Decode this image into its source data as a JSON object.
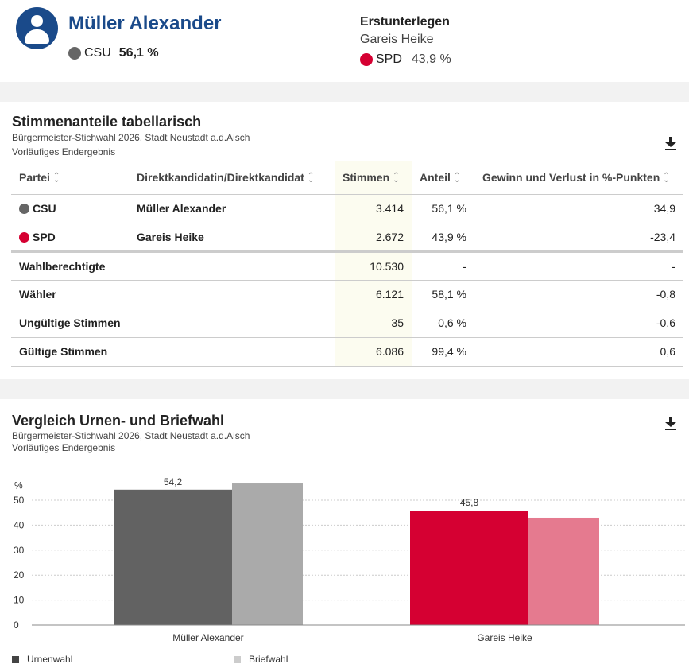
{
  "winner": {
    "name": "Müller Alexander",
    "party": "CSU",
    "percent": "56,1 %",
    "color": "#666666"
  },
  "runner_up": {
    "title": "Erstunterlegen",
    "name": "Gareis Heike",
    "party": "SPD",
    "percent": "43,9 %",
    "color": "#d50032"
  },
  "table_section": {
    "title": "Stimmenanteile tabellarisch",
    "subtitle": "Bürgermeister-Stichwahl 2026, Stadt Neustadt a.d.Aisch",
    "status": "Vorläufiges Endergebnis",
    "headers": {
      "partei": "Partei",
      "kandidat": "Direktkandidatin/Direktkandidat",
      "stimmen": "Stimmen",
      "anteil": "Anteil",
      "gewinn": "Gewinn und Verlust in %-Punkten"
    },
    "rows": [
      {
        "party": "CSU",
        "candidate": "Müller Alexander",
        "stimmen": "3.414",
        "anteil": "56,1 %",
        "gewinn": "34,9",
        "color": "#666666"
      },
      {
        "party": "SPD",
        "candidate": "Gareis Heike",
        "stimmen": "2.672",
        "anteil": "43,9 %",
        "gewinn": "-23,4",
        "color": "#d50032"
      }
    ],
    "summary": [
      {
        "label": "Wahlberechtigte",
        "stimmen": "10.530",
        "anteil": "-",
        "gewinn": "-"
      },
      {
        "label": "Wähler",
        "stimmen": "6.121",
        "anteil": "58,1 %",
        "gewinn": "-0,8"
      },
      {
        "label": "Ungültige Stimmen",
        "stimmen": "35",
        "anteil": "0,6 %",
        "gewinn": "-0,6"
      },
      {
        "label": "Gültige Stimmen",
        "stimmen": "6.086",
        "anteil": "99,4 %",
        "gewinn": "0,6"
      }
    ]
  },
  "chart_section": {
    "title": "Vergleich Urnen- und Briefwahl",
    "subtitle": "Bürgermeister-Stichwahl 2026, Stadt Neustadt a.d.Aisch",
    "status": "Vorläufiges Endergebnis"
  },
  "chart_data": {
    "type": "bar",
    "ylabel": "%",
    "ylim": [
      0,
      55
    ],
    "yticks": [
      0,
      10,
      20,
      30,
      40,
      50
    ],
    "categories": [
      "Müller Alexander",
      "Gareis Heike"
    ],
    "series": [
      {
        "name": "Urnenwahl",
        "values": [
          54.2,
          45.8
        ],
        "colors": [
          "#626262",
          "#d50032"
        ],
        "labels": [
          "54,2",
          "45,8"
        ]
      },
      {
        "name": "Briefwahl",
        "values": [
          57.0,
          43.0
        ],
        "colors": [
          "#aaaaaa",
          "#e57a8f"
        ],
        "labels": [
          "",
          ""
        ]
      }
    ],
    "legend": [
      {
        "name": "Urnenwahl",
        "color": "#444444"
      },
      {
        "name": "Briefwahl",
        "color": "#cccccc"
      }
    ]
  }
}
